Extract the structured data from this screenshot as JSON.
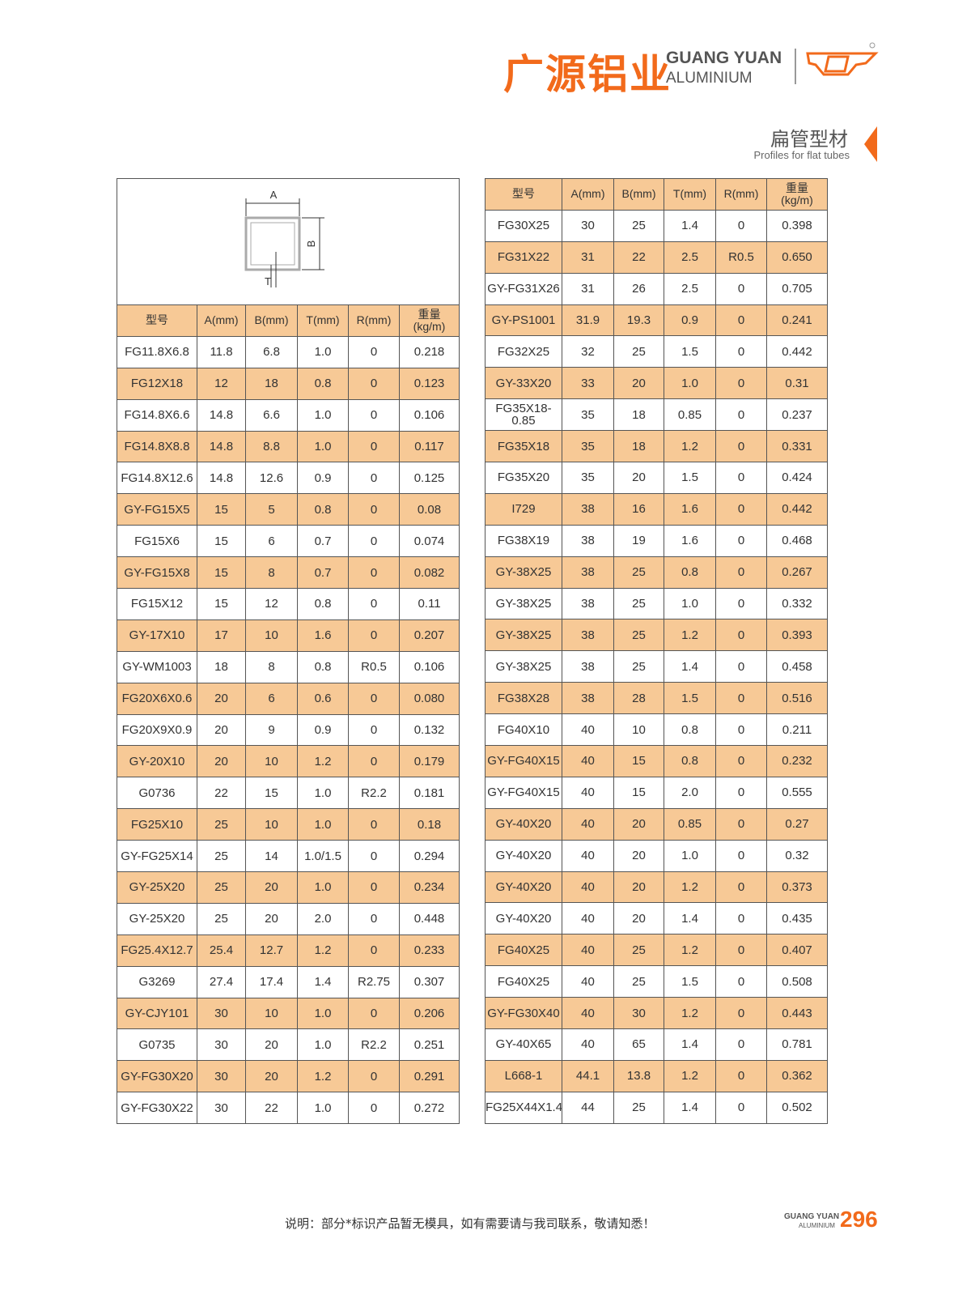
{
  "header": {
    "brand_cn": "广源铝业",
    "brand_en_1": "GUANG YUAN",
    "brand_en_2": "ALUMINIUM"
  },
  "section": {
    "title": "扁管型材",
    "subtitle": "Profiles for flat tubes"
  },
  "diagram": {
    "labels": {
      "a": "A",
      "b": "B",
      "t": "T"
    }
  },
  "columns": [
    "型号",
    "A(mm)",
    "B(mm)",
    "T(mm)",
    "R(mm)",
    "重量\n(kg/m)"
  ],
  "left_table": {
    "rows": [
      [
        "FG11.8X6.8",
        "11.8",
        "6.8",
        "1.0",
        "0",
        "0.218"
      ],
      [
        "FG12X18",
        "12",
        "18",
        "0.8",
        "0",
        "0.123"
      ],
      [
        "FG14.8X6.6",
        "14.8",
        "6.6",
        "1.0",
        "0",
        "0.106"
      ],
      [
        "FG14.8X8.8",
        "14.8",
        "8.8",
        "1.0",
        "0",
        "0.117"
      ],
      [
        "FG14.8X12.6",
        "14.8",
        "12.6",
        "0.9",
        "0",
        "0.125"
      ],
      [
        "GY-FG15X5",
        "15",
        "5",
        "0.8",
        "0",
        "0.08"
      ],
      [
        "FG15X6",
        "15",
        "6",
        "0.7",
        "0",
        "0.074"
      ],
      [
        "GY-FG15X8",
        "15",
        "8",
        "0.7",
        "0",
        "0.082"
      ],
      [
        "FG15X12",
        "15",
        "12",
        "0.8",
        "0",
        "0.11"
      ],
      [
        "GY-17X10",
        "17",
        "10",
        "1.6",
        "0",
        "0.207"
      ],
      [
        "GY-WM1003",
        "18",
        "8",
        "0.8",
        "R0.5",
        "0.106"
      ],
      [
        "FG20X6X0.6",
        "20",
        "6",
        "0.6",
        "0",
        "0.080"
      ],
      [
        "FG20X9X0.9",
        "20",
        "9",
        "0.9",
        "0",
        "0.132"
      ],
      [
        "GY-20X10",
        "20",
        "10",
        "1.2",
        "0",
        "0.179"
      ],
      [
        "G0736",
        "22",
        "15",
        "1.0",
        "R2.2",
        "0.181"
      ],
      [
        "FG25X10",
        "25",
        "10",
        "1.0",
        "0",
        "0.18"
      ],
      [
        "GY-FG25X14",
        "25",
        "14",
        "1.0/1.5",
        "0",
        "0.294"
      ],
      [
        "GY-25X20",
        "25",
        "20",
        "1.0",
        "0",
        "0.234"
      ],
      [
        "GY-25X20",
        "25",
        "20",
        "2.0",
        "0",
        "0.448"
      ],
      [
        "FG25.4X12.7",
        "25.4",
        "12.7",
        "1.2",
        "0",
        "0.233"
      ],
      [
        "G3269",
        "27.4",
        "17.4",
        "1.4",
        "R2.75",
        "0.307"
      ],
      [
        "GY-CJY101",
        "30",
        "10",
        "1.0",
        "0",
        "0.206"
      ],
      [
        "G0735",
        "30",
        "20",
        "1.0",
        "R2.2",
        "0.251"
      ],
      [
        "GY-FG30X20",
        "30",
        "20",
        "1.2",
        "0",
        "0.291"
      ],
      [
        "GY-FG30X22",
        "30",
        "22",
        "1.0",
        "0",
        "0.272"
      ]
    ]
  },
  "right_table": {
    "rows": [
      [
        "FG30X25",
        "30",
        "25",
        "1.4",
        "0",
        "0.398"
      ],
      [
        "FG31X22",
        "31",
        "22",
        "2.5",
        "R0.5",
        "0.650"
      ],
      [
        "GY-FG31X26",
        "31",
        "26",
        "2.5",
        "0",
        "0.705"
      ],
      [
        "GY-PS1001",
        "31.9",
        "19.3",
        "0.9",
        "0",
        "0.241"
      ],
      [
        "FG32X25",
        "32",
        "25",
        "1.5",
        "0",
        "0.442"
      ],
      [
        "GY-33X20",
        "33",
        "20",
        "1.0",
        "0",
        "0.31"
      ],
      [
        "FG35X18-0.85",
        "35",
        "18",
        "0.85",
        "0",
        "0.237"
      ],
      [
        "FG35X18",
        "35",
        "18",
        "1.2",
        "0",
        "0.331"
      ],
      [
        "FG35X20",
        "35",
        "20",
        "1.5",
        "0",
        "0.424"
      ],
      [
        "I729",
        "38",
        "16",
        "1.6",
        "0",
        "0.442"
      ],
      [
        "FG38X19",
        "38",
        "19",
        "1.6",
        "0",
        "0.468"
      ],
      [
        "GY-38X25",
        "38",
        "25",
        "0.8",
        "0",
        "0.267"
      ],
      [
        "GY-38X25",
        "38",
        "25",
        "1.0",
        "0",
        "0.332"
      ],
      [
        "GY-38X25",
        "38",
        "25",
        "1.2",
        "0",
        "0.393"
      ],
      [
        "GY-38X25",
        "38",
        "25",
        "1.4",
        "0",
        "0.458"
      ],
      [
        "FG38X28",
        "38",
        "28",
        "1.5",
        "0",
        "0.516"
      ],
      [
        "FG40X10",
        "40",
        "10",
        "0.8",
        "0",
        "0.211"
      ],
      [
        "GY-FG40X15",
        "40",
        "15",
        "0.8",
        "0",
        "0.232"
      ],
      [
        "GY-FG40X15",
        "40",
        "15",
        "2.0",
        "0",
        "0.555"
      ],
      [
        "GY-40X20",
        "40",
        "20",
        "0.85",
        "0",
        "0.27"
      ],
      [
        "GY-40X20",
        "40",
        "20",
        "1.0",
        "0",
        "0.32"
      ],
      [
        "GY-40X20",
        "40",
        "20",
        "1.2",
        "0",
        "0.373"
      ],
      [
        "GY-40X20",
        "40",
        "20",
        "1.4",
        "0",
        "0.435"
      ],
      [
        "FG40X25",
        "40",
        "25",
        "1.2",
        "0",
        "0.407"
      ],
      [
        "FG40X25",
        "40",
        "25",
        "1.5",
        "0",
        "0.508"
      ],
      [
        "GY-FG30X40",
        "40",
        "30",
        "1.2",
        "0",
        "0.443"
      ],
      [
        "GY-40X65",
        "40",
        "65",
        "1.4",
        "0",
        "0.781"
      ],
      [
        "L668-1",
        "44.1",
        "13.8",
        "1.2",
        "0",
        "0.362"
      ],
      [
        "FG25X44X1.4",
        "44",
        "25",
        "1.4",
        "0",
        "0.502"
      ]
    ]
  },
  "footer": {
    "note": "说明：部分*标识产品暂无模具，如有需要请与我司联系，敬请知悉！",
    "brand_1": "GUANG YUAN",
    "brand_2": "ALUMINIUM",
    "page": "296"
  }
}
